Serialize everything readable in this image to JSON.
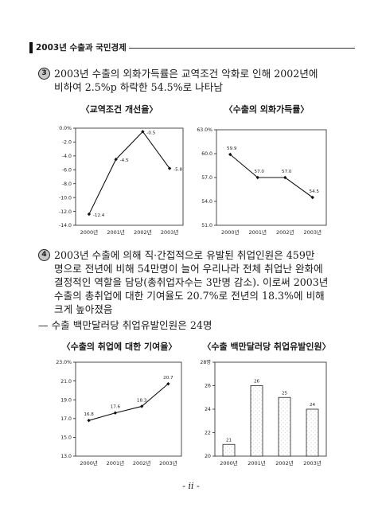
{
  "header": {
    "title": "2003년 수출과 국민경제"
  },
  "section3": {
    "marker": "3",
    "lines": [
      "2003년 수출의 외화가득률은 교역조건 악화로 인해 2002년에",
      "비하여 2.5%p 하락한 54.5%로 나타남"
    ]
  },
  "section4": {
    "marker": "4",
    "lines": [
      "2003년 수출에 의해 직·간접적으로 유발된 취업인원은 459만",
      "명으로 전년에 비해 54만명이 늘어 우리나라 전체 취업난 완화에",
      "결정적인 역할을 담당(총취업자수는 3만명 감소). 이로써 2003년",
      "수출의 총취업에 대한 기여율도 20.7%로 전년의 18.3%에 비해",
      "크게 높아졌음"
    ]
  },
  "note": {
    "text": "— 수출 백만달러당 취업유발인원은 24명"
  },
  "footer": {
    "page": "- ii -"
  },
  "chart_data": [
    {
      "type": "line",
      "title": "〈교역조건 개선율〉",
      "categories": [
        "2000년",
        "2001년",
        "2002년",
        "2003년"
      ],
      "values": [
        -12.4,
        -4.5,
        -0.5,
        -5.8
      ],
      "data_labels": [
        "-12.4",
        "-4.5",
        "-0.5",
        "-5.8"
      ],
      "ylim": [
        -14,
        0
      ],
      "yticks": [
        {
          "value": 0,
          "label": "0.0%"
        },
        {
          "value": -2,
          "label": "-2.0"
        },
        {
          "value": -4,
          "label": "-4.0"
        },
        {
          "value": -6,
          "label": "-6.0"
        },
        {
          "value": -8,
          "label": "-8.0"
        },
        {
          "value": -10,
          "label": "-10.0"
        },
        {
          "value": -12,
          "label": "-12.0"
        },
        {
          "value": -14,
          "label": "-14.0"
        }
      ],
      "grid": false
    },
    {
      "type": "line",
      "title": "〈수출의 외화가득률〉",
      "categories": [
        "2000년",
        "2001년",
        "2002년",
        "2003년"
      ],
      "values": [
        59.9,
        57.0,
        57.0,
        54.5
      ],
      "data_labels": [
        "59.9",
        "57.0",
        "57.0",
        "54.5"
      ],
      "ylim": [
        51,
        63
      ],
      "yticks": [
        {
          "value": 63,
          "label": "63.0%"
        },
        {
          "value": 60,
          "label": "60.0"
        },
        {
          "value": 57,
          "label": "57.0"
        },
        {
          "value": 54,
          "label": "54.0"
        },
        {
          "value": 51,
          "label": "51.0"
        }
      ],
      "grid": false
    },
    {
      "type": "line",
      "title": "〈수출의 취업에 대한 기여율〉",
      "categories": [
        "2000년",
        "2001년",
        "2002년",
        "2003년"
      ],
      "values": [
        16.8,
        17.6,
        18.3,
        20.7
      ],
      "data_labels": [
        "16.8",
        "17.6",
        "18.3",
        "20.7"
      ],
      "ylim": [
        13,
        23
      ],
      "yticks": [
        {
          "value": 23,
          "label": "23.0%"
        },
        {
          "value": 21,
          "label": "21.0"
        },
        {
          "value": 19,
          "label": "19.0"
        },
        {
          "value": 17,
          "label": "17.0"
        },
        {
          "value": 15,
          "label": "15.0"
        },
        {
          "value": 13,
          "label": "13.0"
        }
      ],
      "grid": false
    },
    {
      "type": "bar",
      "title": "〈수출 백만달러당 취업유발인원〉",
      "categories": [
        "2000년",
        "2001년",
        "2002년",
        "2003년"
      ],
      "values": [
        21,
        26,
        25,
        24
      ],
      "data_labels": [
        "21",
        "26",
        "25",
        "24"
      ],
      "ylim": [
        20,
        28
      ],
      "yticks": [
        {
          "value": 28,
          "label": "28명"
        },
        {
          "value": 26,
          "label": "26"
        },
        {
          "value": 24,
          "label": "24"
        },
        {
          "value": 22,
          "label": "22"
        },
        {
          "value": 20,
          "label": "20"
        }
      ],
      "grid": false
    }
  ]
}
